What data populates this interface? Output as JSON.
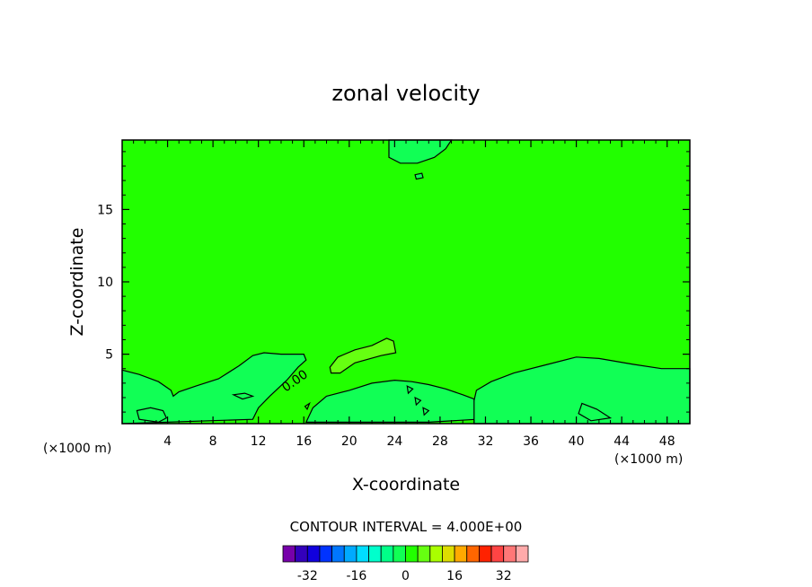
{
  "chart_data": {
    "type": "heatmap",
    "title": "zonal velocity",
    "xlabel": "X-coordinate",
    "ylabel": "Z-coordinate",
    "x_unit_left": "(×1000 m)",
    "x_unit_right": "(×1000 m)",
    "xlim": [
      0,
      50
    ],
    "ylim": [
      0.2,
      19.8
    ],
    "x_ticks": [
      4,
      8,
      12,
      16,
      20,
      24,
      28,
      32,
      36,
      40,
      44,
      48
    ],
    "y_ticks": [
      5,
      10,
      15
    ],
    "contour_interval_text": "CONTOUR INTERVAL = 4.000E+00",
    "contour_label": "0.00",
    "background_level": 0,
    "background_color": "#22ff00",
    "contour_regions": [
      {
        "label": "upper-lobe",
        "level": 4,
        "color": "#11ff55",
        "points": [
          [
            23.5,
            19.8
          ],
          [
            23.5,
            18.6
          ],
          [
            24.5,
            18.2
          ],
          [
            26,
            18.2
          ],
          [
            27.5,
            18.6
          ],
          [
            28.5,
            19.2
          ],
          [
            29,
            19.8
          ]
        ]
      },
      {
        "label": "upper-blob",
        "level": 4,
        "color": "#11ff55",
        "points": [
          [
            25.8,
            17.4
          ],
          [
            26.4,
            17.5
          ],
          [
            26.5,
            17.2
          ],
          [
            25.9,
            17.1
          ]
        ]
      },
      {
        "label": "positive-cell",
        "level": 8,
        "color": "#66ff11",
        "points": [
          [
            18.3,
            4.1
          ],
          [
            19,
            4.8
          ],
          [
            20.5,
            5.3
          ],
          [
            22,
            5.6
          ],
          [
            23.3,
            6.1
          ],
          [
            23.9,
            5.9
          ],
          [
            24.1,
            5.1
          ],
          [
            22.8,
            4.9
          ],
          [
            20.5,
            4.4
          ],
          [
            19.2,
            3.7
          ],
          [
            18.4,
            3.7
          ]
        ]
      },
      {
        "label": "left-lower",
        "level": 4,
        "color": "#11ff55",
        "points": [
          [
            0,
            3.9
          ],
          [
            1.5,
            3.6
          ],
          [
            3.2,
            3.1
          ],
          [
            4.3,
            2.5
          ],
          [
            4.5,
            2.1
          ],
          [
            5,
            2.4
          ],
          [
            6.5,
            2.8
          ],
          [
            8.5,
            3.3
          ],
          [
            10.3,
            4.2
          ],
          [
            11.5,
            4.9
          ],
          [
            12.5,
            5.1
          ],
          [
            14,
            5
          ],
          [
            16,
            5
          ],
          [
            16.2,
            4.6
          ],
          [
            15.5,
            4.1
          ],
          [
            14.5,
            3.2
          ],
          [
            13,
            2.1
          ],
          [
            12,
            1.3
          ],
          [
            11.5,
            0.5
          ],
          [
            0,
            0.2
          ]
        ]
      },
      {
        "label": "mid-lower",
        "level": 4,
        "color": "#11ff55",
        "points": [
          [
            18,
            2.1
          ],
          [
            20,
            2.5
          ],
          [
            22,
            3
          ],
          [
            24,
            3.2
          ],
          [
            25.5,
            3.1
          ],
          [
            27,
            2.9
          ],
          [
            28.5,
            2.6
          ],
          [
            30,
            2.2
          ],
          [
            31,
            1.9
          ],
          [
            31.2,
            0.5
          ],
          [
            27,
            0.3
          ],
          [
            20,
            0.3
          ],
          [
            16.2,
            0.3
          ],
          [
            16.8,
            1.3
          ]
        ]
      },
      {
        "label": "right-lower",
        "level": 4,
        "color": "#11ff55",
        "points": [
          [
            31.2,
            2.5
          ],
          [
            32.5,
            3.1
          ],
          [
            34.5,
            3.7
          ],
          [
            37,
            4.2
          ],
          [
            40,
            4.8
          ],
          [
            42,
            4.7
          ],
          [
            45,
            4.3
          ],
          [
            47.5,
            4.0
          ],
          [
            50,
            4.0
          ],
          [
            50,
            0.2
          ],
          [
            31,
            0.2
          ],
          [
            31,
            1.8
          ]
        ]
      }
    ],
    "contour_lines": [
      {
        "label": "circle-a",
        "points": [
          [
            16.1,
            1.4
          ],
          [
            16.5,
            1.6
          ],
          [
            16.3,
            1.2
          ]
        ],
        "closed": true
      },
      {
        "label": "circle-b",
        "points": [
          [
            25.1,
            2.8
          ],
          [
            25.6,
            2.6
          ],
          [
            25.2,
            2.3
          ]
        ],
        "closed": true
      },
      {
        "label": "circle-c",
        "points": [
          [
            25.8,
            2.0
          ],
          [
            26.3,
            1.8
          ],
          [
            25.9,
            1.5
          ]
        ],
        "closed": true
      },
      {
        "label": "circle-d",
        "points": [
          [
            26.5,
            1.3
          ],
          [
            27,
            1.1
          ],
          [
            26.6,
            0.8
          ]
        ],
        "closed": true
      },
      {
        "label": "small-left",
        "points": [
          [
            1.3,
            1.1
          ],
          [
            2.5,
            1.3
          ],
          [
            3.6,
            1.1
          ],
          [
            3.9,
            0.6
          ],
          [
            3.2,
            0.3
          ],
          [
            1.5,
            0.5
          ]
        ],
        "closed": true
      },
      {
        "label": "small-mid",
        "points": [
          [
            9.8,
            2.2
          ],
          [
            10.8,
            2.3
          ],
          [
            11.5,
            2.1
          ],
          [
            10.6,
            1.9
          ]
        ],
        "closed": true
      },
      {
        "label": "small-right",
        "points": [
          [
            40.5,
            1.6
          ],
          [
            41.8,
            1.2
          ],
          [
            43,
            0.6
          ],
          [
            41.3,
            0.4
          ],
          [
            40.2,
            0.9
          ]
        ],
        "closed": true
      }
    ],
    "colorbar": {
      "levels": [
        -36,
        -32,
        -28,
        -24,
        -20,
        -16,
        -12,
        -8,
        -4,
        0,
        4,
        8,
        12,
        16,
        20,
        24,
        28,
        32,
        36
      ],
      "colors": [
        "#7700aa",
        "#3300bb",
        "#1100dd",
        "#0033ff",
        "#0077ff",
        "#00aaff",
        "#00ddff",
        "#00ffcc",
        "#00ff88",
        "#11ff55",
        "#22ff00",
        "#66ff11",
        "#aaff00",
        "#dddd00",
        "#ffaa00",
        "#ff6600",
        "#ff2200",
        "#ff4444",
        "#ff7777",
        "#ffaaaa"
      ],
      "tick_labels": [
        "-32",
        "-16",
        "0",
        "16",
        "32"
      ],
      "tick_values": [
        -32,
        -16,
        0,
        16,
        32
      ]
    },
    "grid": false,
    "legend": "bottom"
  }
}
